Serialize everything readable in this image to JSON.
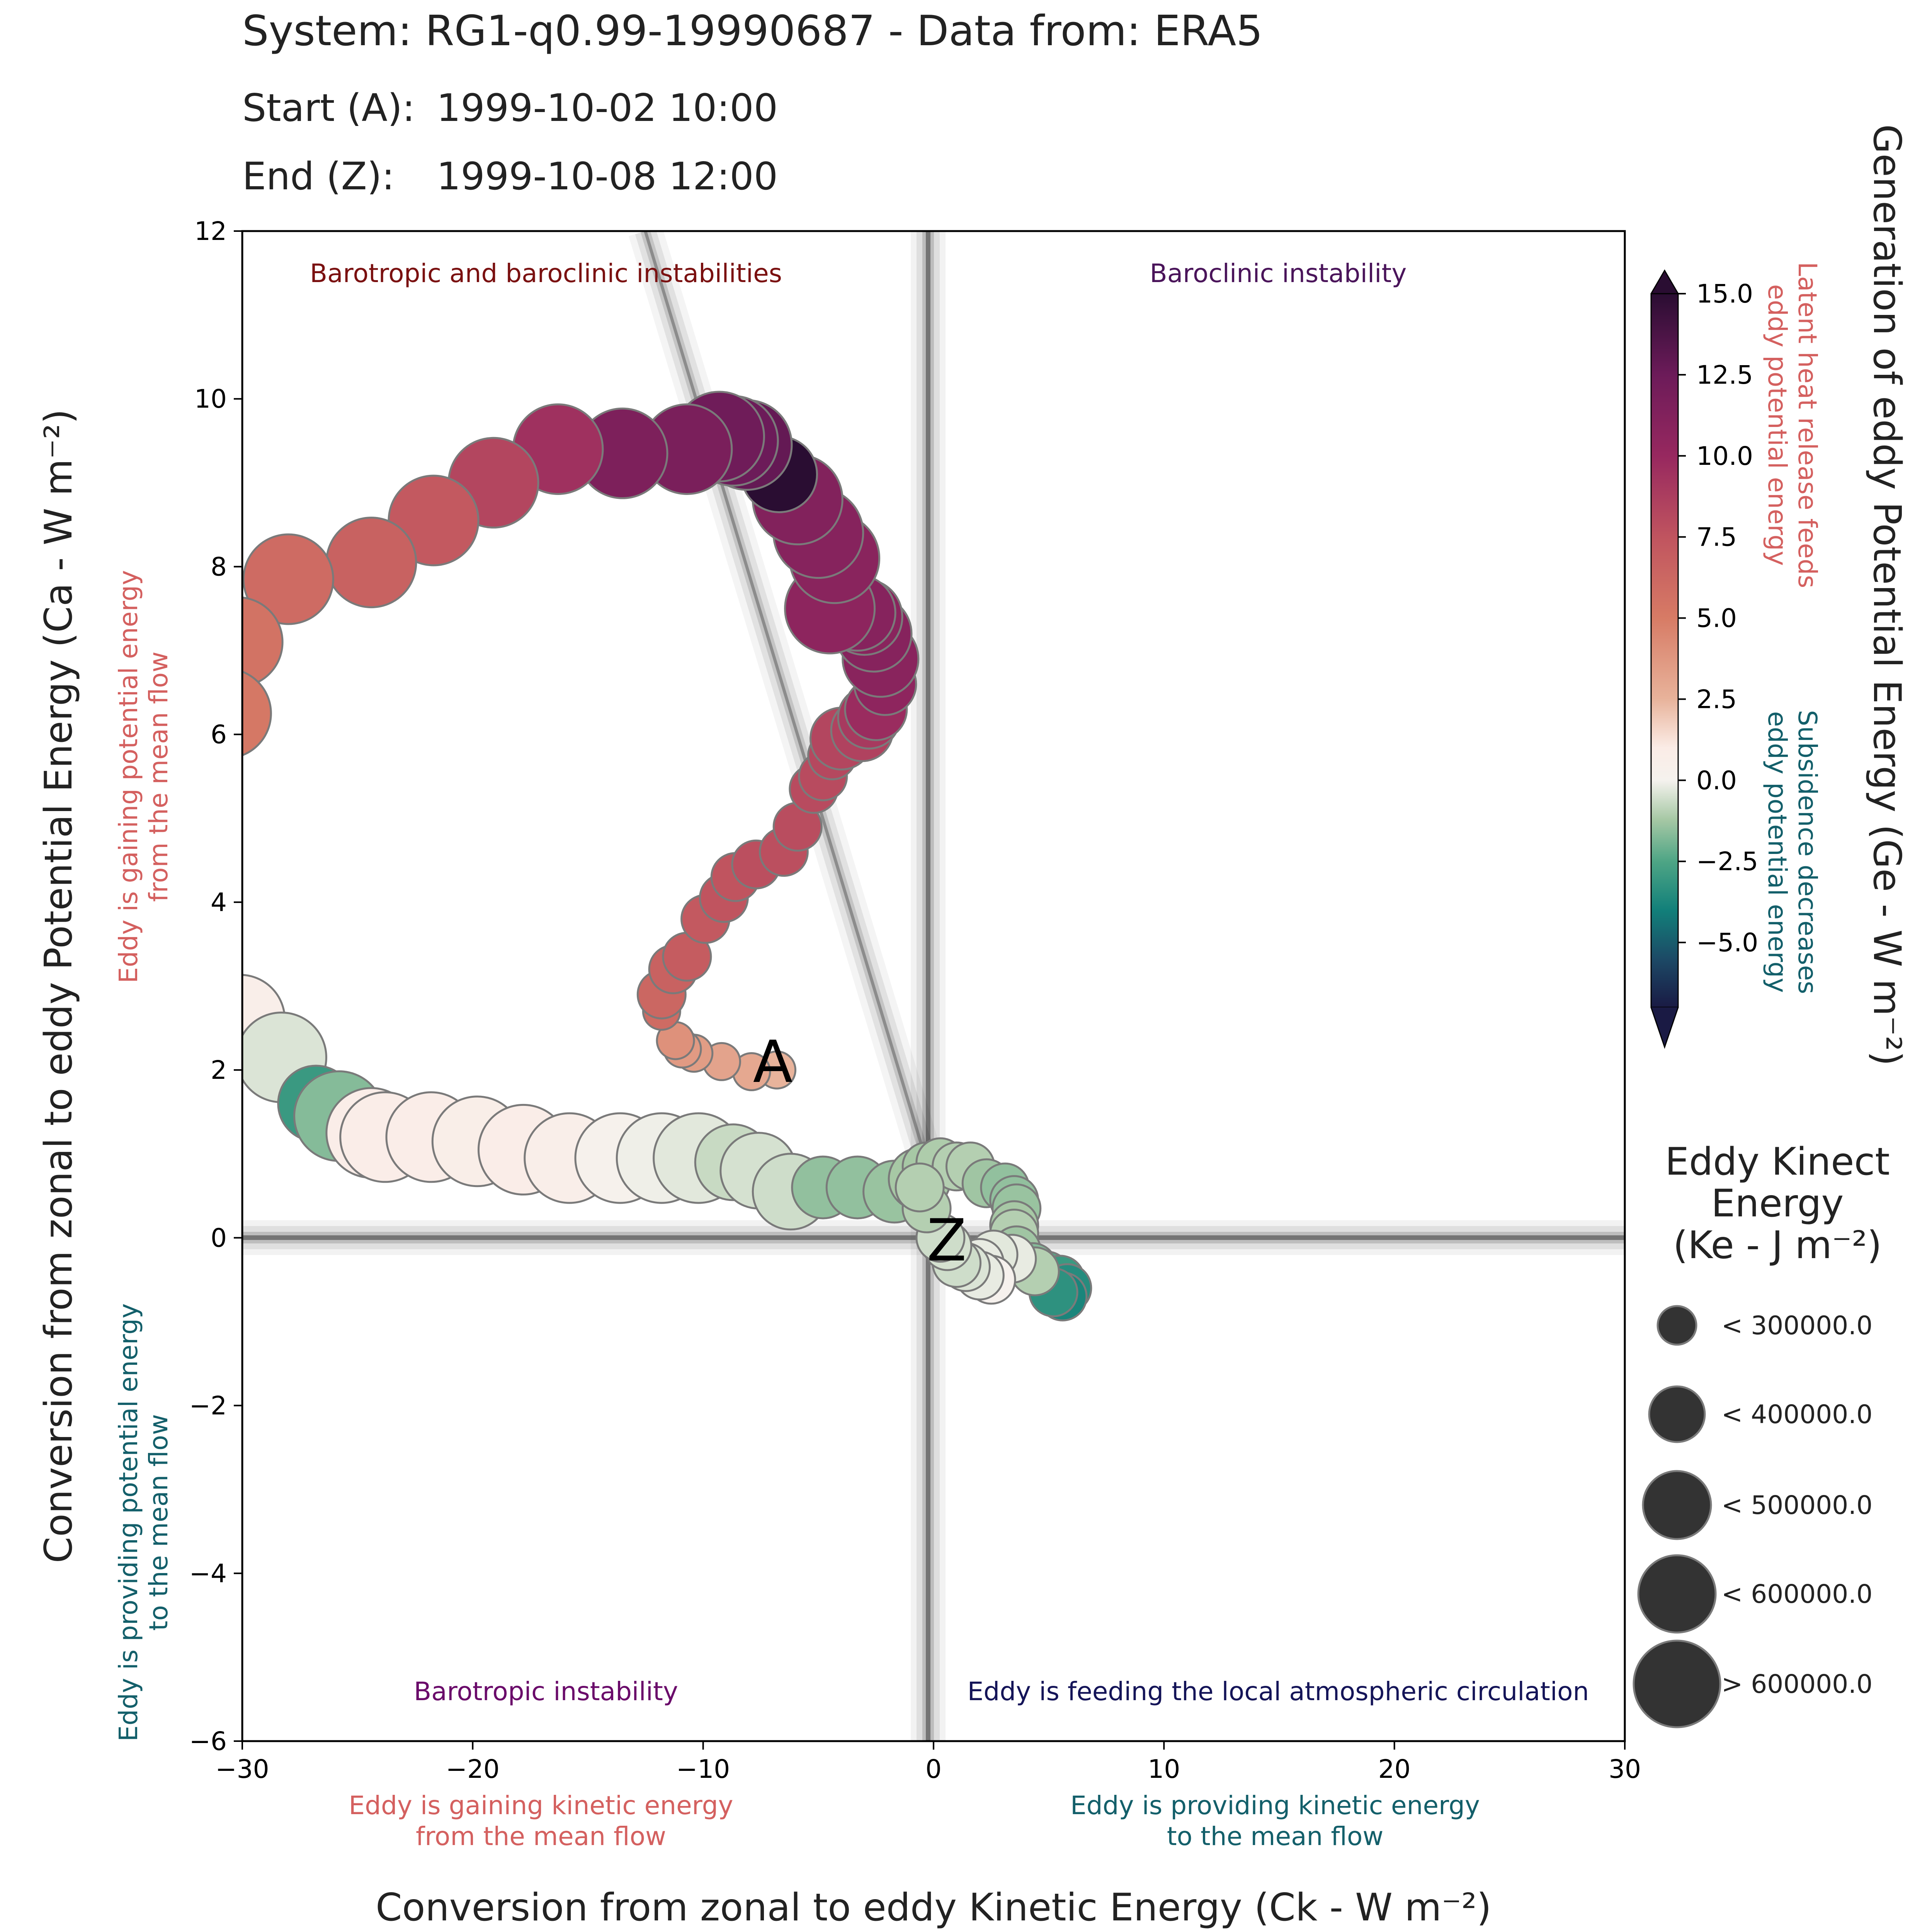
{
  "header": {
    "system_line": "System: RG1-q0.99-19990687 - Data from: ERA5",
    "start_label": "Start (A):",
    "start_value": "1999-10-02 10:00",
    "end_label": "End (Z):",
    "end_value": "1999-10-08 12:00"
  },
  "chart_data": {
    "type": "scatter",
    "title": "System: RG1-q0.99-19990687 - Data from: ERA5",
    "xlabel": "Conversion from zonal to eddy Kinetic Energy (Ck - W m⁻²)",
    "ylabel": "Conversion from zonal to eddy Potential Energy (Ca - W m⁻²)",
    "xlim": [
      -30,
      30
    ],
    "ylim": [
      -6,
      12
    ],
    "xticks": [
      -30,
      -20,
      -10,
      0,
      10,
      20,
      30
    ],
    "yticks": [
      -6,
      -4,
      -2,
      0,
      2,
      4,
      6,
      8,
      10,
      12
    ],
    "xtick_labels": [
      "−30",
      "−20",
      "−10",
      "0",
      "10",
      "20",
      "30"
    ],
    "ytick_labels": [
      "−6",
      "−4",
      "−2",
      "0",
      "2",
      "4",
      "6",
      "8",
      "10",
      "12"
    ],
    "grid": false,
    "start_marker": "A",
    "end_marker": "Z",
    "quadrant_labels": {
      "top_left": "Barotropic and baroclinic instabilities",
      "top_right": "Baroclinic instability",
      "bottom_left": "Barotropic instability",
      "bottom_right": "Eddy is feeding the local atmospheric circulation"
    },
    "axis_annotations": {
      "x_negative": "Eddy is gaining kinetic energy\nfrom the mean flow",
      "x_positive": "Eddy is providing kinetic energy\nto the mean flow",
      "y_positive": "Eddy is gaining potential energy\nfrom the mean flow",
      "y_negative": "Eddy is providing potential energy\nto the mean flow"
    },
    "colorbar": {
      "label": "Generation of eddy Potential Energy (Ge - W m⁻²)",
      "range": [
        -7,
        15
      ],
      "ticks": [
        15,
        12.5,
        10,
        7.5,
        5,
        2.5,
        0,
        -2.5,
        -5
      ],
      "tick_labels": [
        "15.0",
        "12.5",
        "10.0",
        "7.5",
        "5.0",
        "2.5",
        "0.0",
        "−2.5",
        "−5.0"
      ],
      "positive_annotation": "Latent heat release feeds\neddy potential energy",
      "negative_annotation": "Subsidence decreases\neddy potential energy",
      "extend": "both",
      "cmap_stops": [
        {
          "v": -7,
          "c": "#1a1a44"
        },
        {
          "v": -5.5,
          "c": "#1c4a66"
        },
        {
          "v": -4,
          "c": "#12807a"
        },
        {
          "v": -2.5,
          "c": "#4ea585"
        },
        {
          "v": -1.2,
          "c": "#a7c8a5"
        },
        {
          "v": 0,
          "c": "#f5f2ee"
        },
        {
          "v": 1,
          "c": "#fbece6"
        },
        {
          "v": 2.5,
          "c": "#e8b39b"
        },
        {
          "v": 5,
          "c": "#d77b65"
        },
        {
          "v": 7.5,
          "c": "#c0545f"
        },
        {
          "v": 10,
          "c": "#97285f"
        },
        {
          "v": 12.5,
          "c": "#6c1b59"
        },
        {
          "v": 15,
          "c": "#2a0d32"
        }
      ]
    },
    "size_legend": {
      "title": "Eddy Kinect\nEnergy\n(Ke - J m⁻²)",
      "entries": [
        "< 300000.0",
        "< 400000.0",
        "< 500000.0",
        "< 600000.0",
        "> 600000.0"
      ]
    },
    "series": [
      {
        "columns": [
          "Ck",
          "Ca",
          "Ge",
          "Ke_class"
        ],
        "points": [
          [
            -6.8,
            2.0,
            2.5,
            0
          ],
          [
            -7.9,
            1.98,
            3.0,
            0
          ],
          [
            -9.2,
            2.1,
            3.2,
            0
          ],
          [
            -10.4,
            2.2,
            3.5,
            0
          ],
          [
            -10.9,
            2.25,
            3.6,
            0
          ],
          [
            -11.2,
            2.35,
            4.0,
            0
          ],
          [
            -11.8,
            2.7,
            6.0,
            0
          ],
          [
            -11.8,
            2.9,
            6.3,
            1
          ],
          [
            -11.3,
            3.2,
            6.6,
            1
          ],
          [
            -10.7,
            3.35,
            7.0,
            1
          ],
          [
            -9.9,
            3.8,
            7.2,
            1
          ],
          [
            -9.1,
            4.05,
            7.5,
            1
          ],
          [
            -8.6,
            4.3,
            7.5,
            1
          ],
          [
            -7.7,
            4.45,
            7.8,
            1
          ],
          [
            -6.5,
            4.6,
            7.8,
            1
          ],
          [
            -5.9,
            4.9,
            7.9,
            1
          ],
          [
            -5.2,
            5.35,
            8.0,
            1
          ],
          [
            -4.8,
            5.5,
            8.0,
            1
          ],
          [
            -4.4,
            5.75,
            8.2,
            1
          ],
          [
            -4.0,
            5.95,
            8.3,
            2
          ],
          [
            -3.1,
            6.05,
            8.5,
            2
          ],
          [
            -2.8,
            6.2,
            9.0,
            2
          ],
          [
            -2.5,
            6.3,
            9.8,
            2
          ],
          [
            -2.1,
            6.6,
            10.5,
            2
          ],
          [
            -2.3,
            6.9,
            10.8,
            3
          ],
          [
            -2.6,
            7.2,
            11.0,
            3
          ],
          [
            -3.0,
            7.4,
            10.8,
            3
          ],
          [
            -3.3,
            7.45,
            11.0,
            3
          ],
          [
            -4.5,
            7.5,
            10.6,
            4
          ],
          [
            -4.3,
            8.1,
            10.8,
            4
          ],
          [
            -5.0,
            8.4,
            11.0,
            4
          ],
          [
            -5.9,
            8.8,
            11.2,
            4
          ],
          [
            -6.7,
            9.1,
            15.0,
            3
          ],
          [
            -8.1,
            9.45,
            12.8,
            4
          ],
          [
            -8.7,
            9.5,
            12.5,
            4
          ],
          [
            -9.3,
            9.55,
            12.3,
            4
          ],
          [
            -10.7,
            9.4,
            11.7,
            4
          ],
          [
            -13.5,
            9.35,
            11.5,
            4
          ],
          [
            -16.3,
            9.4,
            9.5,
            4
          ],
          [
            -19.1,
            9.0,
            8.3,
            4
          ],
          [
            -21.7,
            8.55,
            7.2,
            4
          ],
          [
            -24.4,
            8.05,
            6.6,
            4
          ],
          [
            -28.0,
            7.85,
            6.0,
            4
          ],
          [
            -30.2,
            7.1,
            5.5,
            4
          ],
          [
            -30.7,
            6.25,
            5.2,
            4
          ],
          [
            -30.1,
            2.6,
            0.6,
            4
          ],
          [
            -28.3,
            2.15,
            -0.4,
            4
          ],
          [
            -26.8,
            1.6,
            -3.0,
            3
          ],
          [
            -25.8,
            1.45,
            -1.7,
            4
          ],
          [
            -24.4,
            1.25,
            0.8,
            4
          ],
          [
            -23.8,
            1.2,
            0.8,
            4
          ],
          [
            -21.8,
            1.2,
            0.8,
            4
          ],
          [
            -19.8,
            1.15,
            0.7,
            4
          ],
          [
            -17.8,
            1.05,
            0.8,
            4
          ],
          [
            -15.8,
            0.95,
            0.6,
            4
          ],
          [
            -13.6,
            0.95,
            0.2,
            4
          ],
          [
            -11.8,
            0.95,
            -0.1,
            4
          ],
          [
            -10.2,
            0.95,
            -0.3,
            4
          ],
          [
            -8.7,
            0.9,
            -0.7,
            3
          ],
          [
            -7.6,
            0.8,
            -0.5,
            3
          ],
          [
            -6.2,
            0.55,
            -0.6,
            3
          ],
          [
            -4.8,
            0.6,
            -1.5,
            2
          ],
          [
            -3.3,
            0.6,
            -1.5,
            2
          ],
          [
            -1.7,
            0.55,
            -1.4,
            2
          ],
          [
            -0.6,
            0.7,
            -1.2,
            2
          ],
          [
            -0.3,
            0.85,
            -1.2,
            1
          ],
          [
            0.3,
            0.9,
            -1.1,
            1
          ],
          [
            1.0,
            0.85,
            -1.0,
            1
          ],
          [
            1.6,
            0.85,
            -1.0,
            1
          ],
          [
            2.3,
            0.65,
            -1.3,
            1
          ],
          [
            3.1,
            0.6,
            -1.5,
            1
          ],
          [
            3.5,
            0.45,
            -1.5,
            1
          ],
          [
            3.6,
            0.35,
            -1.4,
            1
          ],
          [
            3.5,
            0.15,
            -1.2,
            1
          ],
          [
            3.5,
            0.05,
            -1.0,
            1
          ],
          [
            3.6,
            -0.15,
            -1.3,
            1
          ],
          [
            4.3,
            -0.35,
            -1.7,
            1
          ],
          [
            4.9,
            -0.45,
            -2.4,
            1
          ],
          [
            5.5,
            -0.5,
            -3.0,
            1
          ],
          [
            5.8,
            -0.6,
            -3.5,
            1
          ],
          [
            5.6,
            -0.7,
            -3.8,
            1
          ],
          [
            5.2,
            -0.65,
            -3.3,
            1
          ],
          [
            4.4,
            -0.4,
            -1.0,
            1
          ],
          [
            3.4,
            -0.25,
            -0.2,
            1
          ],
          [
            2.6,
            -0.2,
            -0.3,
            1
          ],
          [
            2.0,
            -0.3,
            -0.2,
            1
          ],
          [
            2.5,
            -0.5,
            0.1,
            1
          ],
          [
            2.0,
            -0.45,
            -0.2,
            1
          ],
          [
            1.4,
            -0.35,
            -0.4,
            1
          ],
          [
            1.0,
            -0.3,
            -0.6,
            1
          ],
          [
            0.6,
            -0.1,
            -0.5,
            1
          ],
          [
            0.3,
            0.0,
            -0.6,
            1
          ],
          [
            -0.3,
            0.35,
            -1.0,
            1
          ],
          [
            -0.6,
            0.6,
            -1.0,
            1
          ]
        ]
      }
    ]
  }
}
